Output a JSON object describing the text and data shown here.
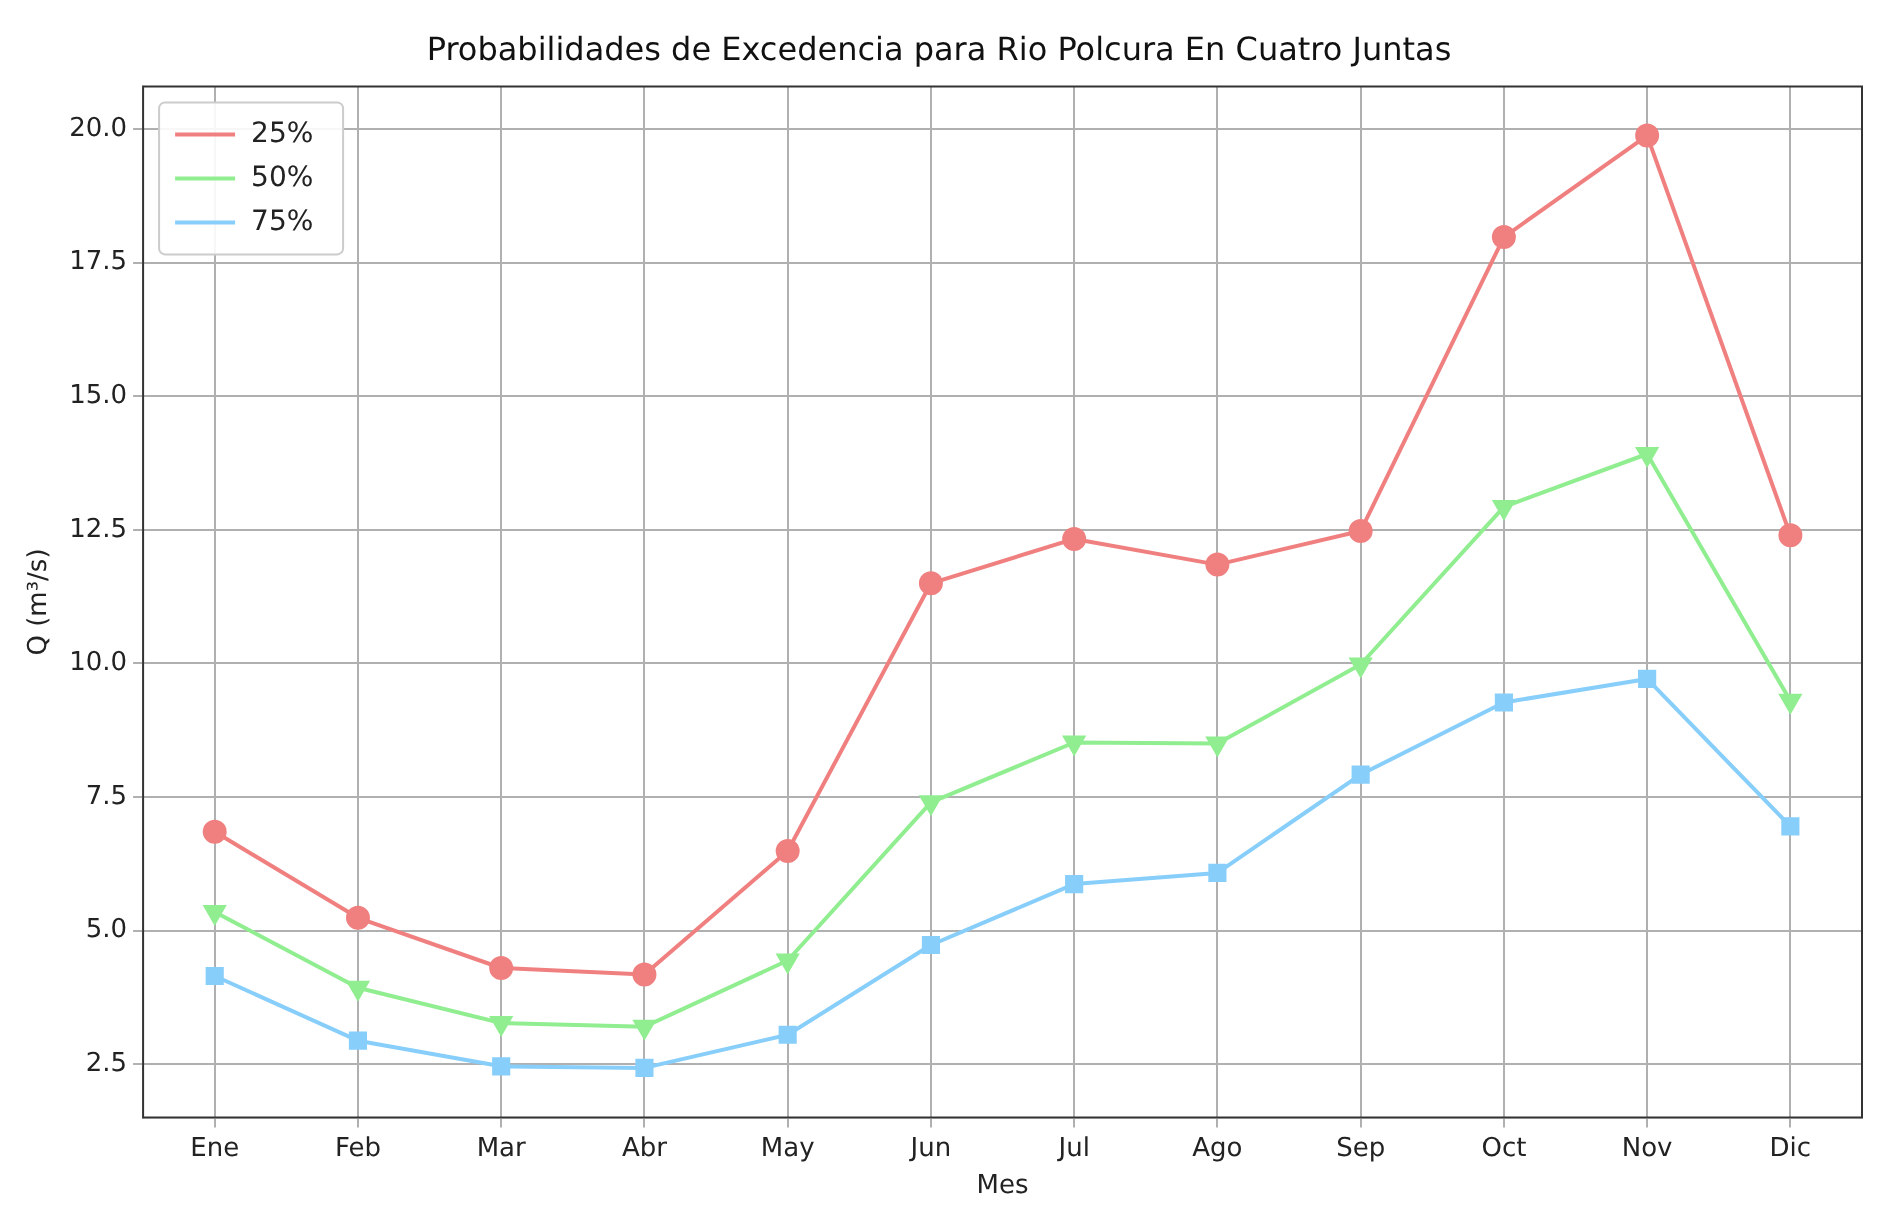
{
  "chart_data": {
    "type": "line",
    "title": "Probabilidades de Excedencia para Rio Polcura En Cuatro Juntas",
    "xlabel": "Mes",
    "ylabel": "Q (m³/s)",
    "categories": [
      "Ene",
      "Feb",
      "Mar",
      "Abr",
      "May",
      "Jun",
      "Jul",
      "Ago",
      "Sep",
      "Oct",
      "Nov",
      "Dic"
    ],
    "series": [
      {
        "name": "25%",
        "color": "#f08080",
        "marker": "circle",
        "values": [
          6.85,
          5.24,
          4.3,
          4.18,
          6.49,
          11.5,
          12.33,
          11.85,
          12.48,
          17.98,
          19.88,
          12.4
        ]
      },
      {
        "name": "50%",
        "color": "#90ee90",
        "marker": "triangle",
        "values": [
          5.35,
          3.93,
          3.27,
          3.2,
          4.44,
          7.4,
          8.52,
          8.5,
          9.98,
          12.93,
          13.92,
          9.3
        ]
      },
      {
        "name": "75%",
        "color": "#87cefa",
        "marker": "square",
        "values": [
          4.15,
          2.94,
          2.46,
          2.43,
          3.05,
          4.73,
          5.87,
          6.08,
          7.92,
          9.27,
          9.71,
          6.95
        ]
      }
    ],
    "ylim": [
      1.5,
      20.8
    ],
    "yticks": [
      {
        "value": 2.5,
        "label": "2.5"
      },
      {
        "value": 5,
        "label": "5.0"
      },
      {
        "value": 7.5,
        "label": "7.5"
      },
      {
        "value": 10,
        "label": "10.0"
      },
      {
        "value": 12.5,
        "label": "12.5"
      },
      {
        "value": 15,
        "label": "15.0"
      },
      {
        "value": 17.5,
        "label": "17.5"
      },
      {
        "value": 20,
        "label": "20.0"
      }
    ],
    "grid": true,
    "legend": "top left",
    "line_style": "solid"
  }
}
